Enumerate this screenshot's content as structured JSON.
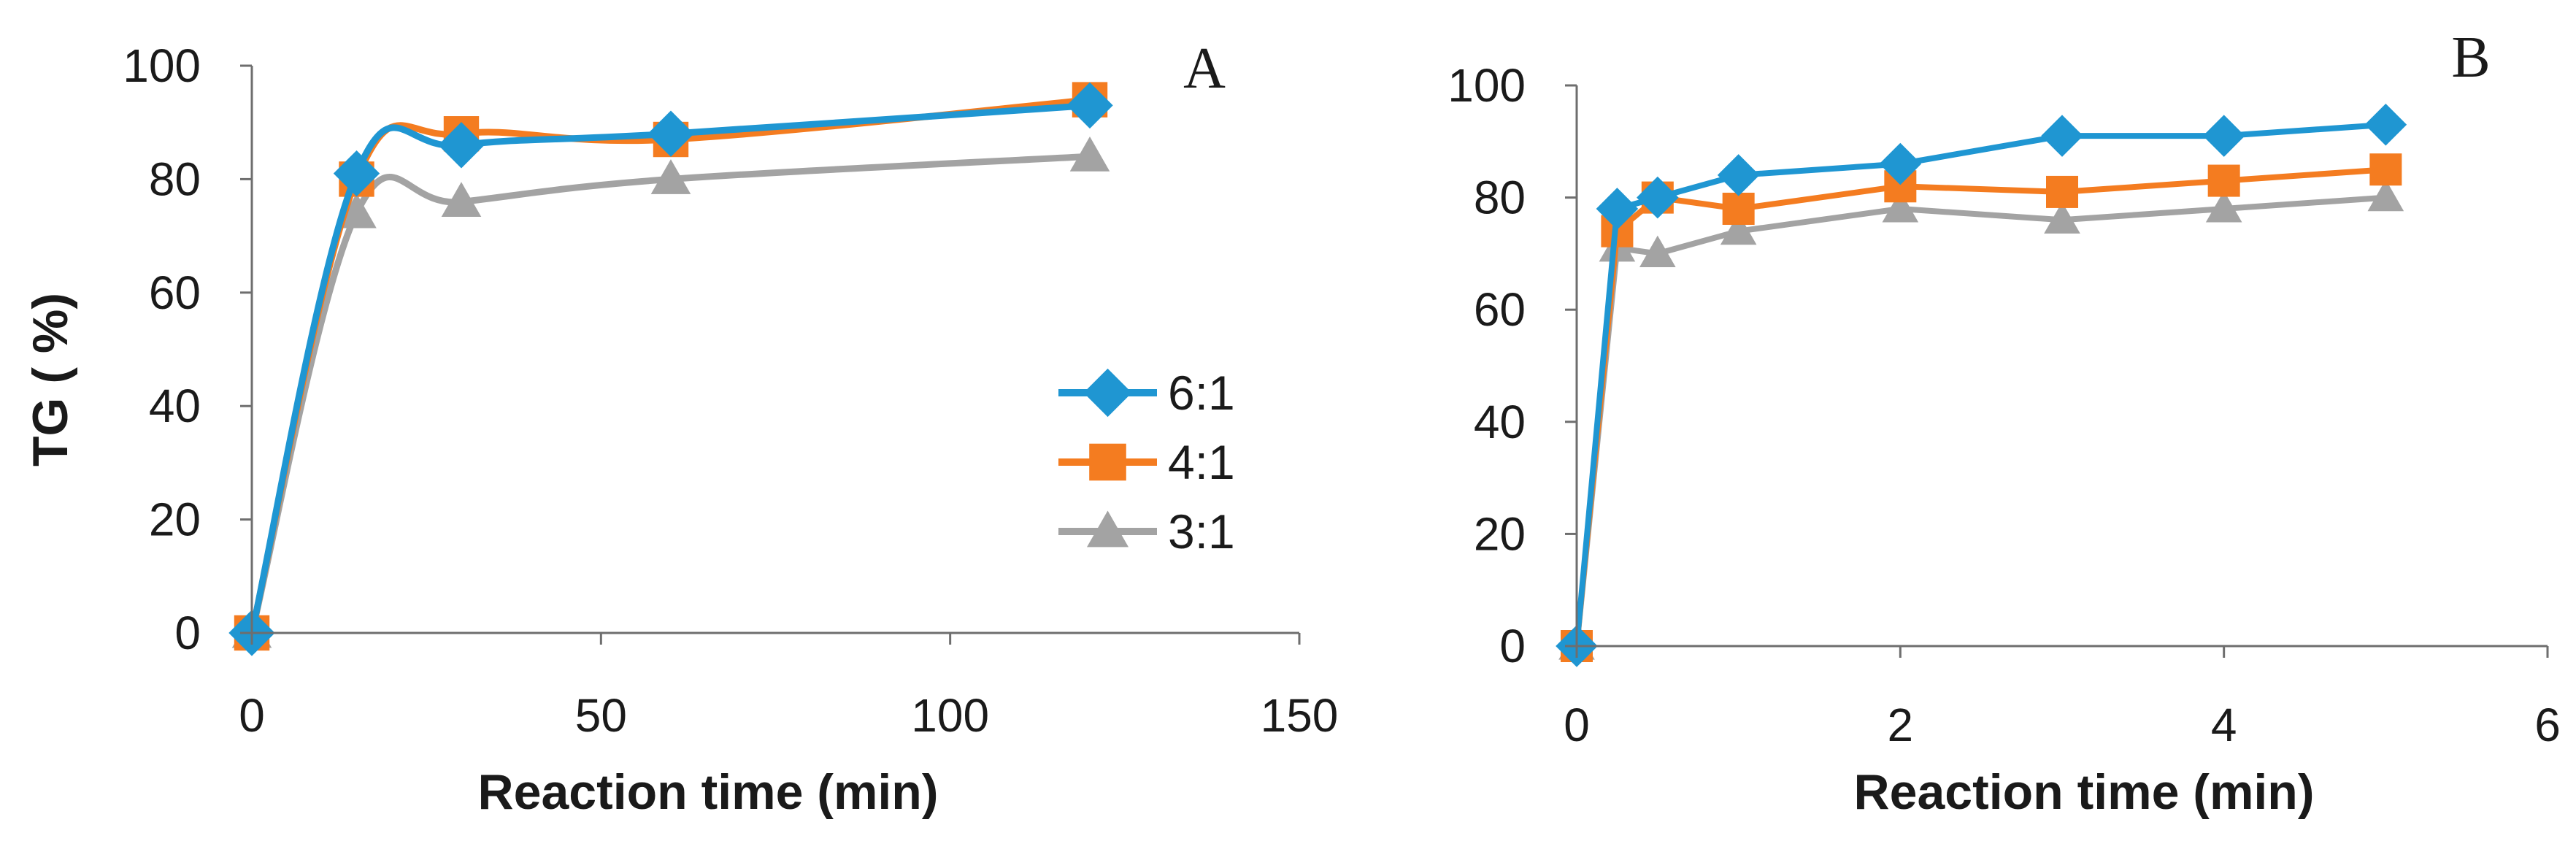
{
  "chart_data": [
    {
      "panel": "A",
      "type": "line",
      "xlabel": "Reaction time (min)",
      "ylabel": "TG ( %)",
      "xlim": [
        0,
        150
      ],
      "ylim": [
        0,
        100
      ],
      "xticks": [
        0,
        50,
        100,
        150
      ],
      "yticks": [
        0,
        20,
        40,
        60,
        80,
        100
      ],
      "legend_position": "right-middle",
      "series": [
        {
          "name": "6:1",
          "color": "#1f96d2",
          "marker": "diamond",
          "x": [
            0,
            15,
            30,
            60,
            120
          ],
          "values": [
            0,
            81,
            86,
            88,
            93
          ]
        },
        {
          "name": "4:1",
          "color": "#f47c20",
          "marker": "square",
          "x": [
            0,
            15,
            30,
            60,
            120
          ],
          "values": [
            0,
            80,
            88,
            87,
            94
          ]
        },
        {
          "name": "3:1",
          "color": "#a3a3a3",
          "marker": "triangle",
          "x": [
            0,
            15,
            30,
            60,
            120
          ],
          "values": [
            0,
            74,
            76,
            80,
            84
          ]
        }
      ]
    },
    {
      "panel": "B",
      "type": "line",
      "xlabel": "Reaction time (min)",
      "ylabel": "",
      "xlim": [
        0,
        6
      ],
      "ylim": [
        0,
        100
      ],
      "xticks": [
        0,
        2,
        4,
        6
      ],
      "yticks": [
        0,
        20,
        40,
        60,
        80,
        100
      ],
      "legend_position": "none",
      "series": [
        {
          "name": "6:1",
          "color": "#1f96d2",
          "marker": "diamond",
          "x": [
            0,
            0.25,
            0.5,
            1,
            2,
            3,
            4,
            5
          ],
          "values": [
            0,
            78,
            80,
            84,
            86,
            91,
            91,
            93
          ]
        },
        {
          "name": "4:1",
          "color": "#f47c20",
          "marker": "square",
          "x": [
            0,
            0.25,
            0.5,
            1,
            2,
            3,
            4,
            5
          ],
          "values": [
            0,
            74,
            80,
            78,
            82,
            81,
            83,
            85
          ]
        },
        {
          "name": "3:1",
          "color": "#a3a3a3",
          "marker": "triangle",
          "x": [
            0,
            0.25,
            0.5,
            1,
            2,
            3,
            4,
            5
          ],
          "values": [
            0,
            71,
            70,
            74,
            78,
            76,
            78,
            80
          ]
        }
      ]
    }
  ]
}
